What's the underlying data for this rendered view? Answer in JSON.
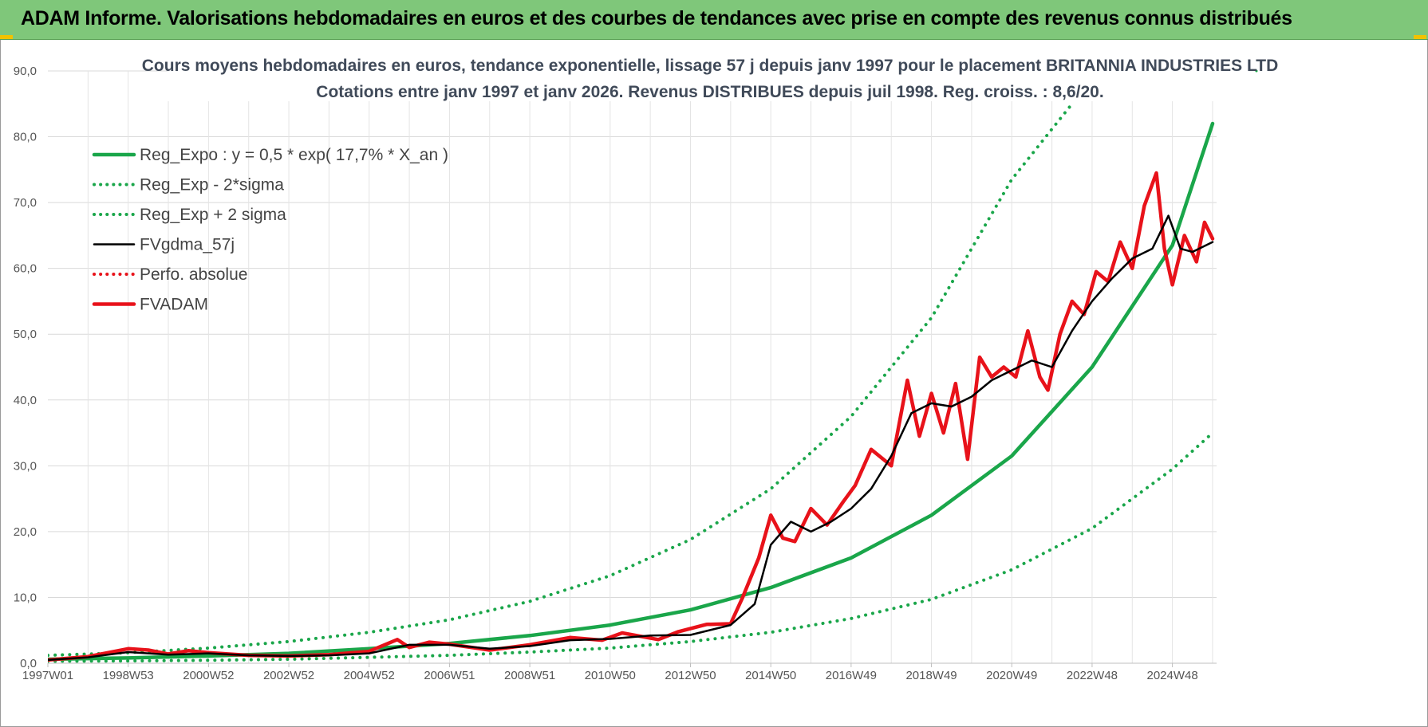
{
  "banner": {
    "title": "ADAM Informe. Valorisations hebdomadaires en euros et des courbes de tendances avec prise en compte des revenus connus distribués"
  },
  "colors": {
    "banner_bg": "#7fc77a",
    "trend": "#1aa64a",
    "price": "#e8121a",
    "smooth": "#000000",
    "grid": "#d9d9d9"
  },
  "chart_data": {
    "type": "line",
    "title": "Cours moyens hebdomadaires en euros, tendance exponentielle, lissage 57 j depuis janv 1997 pour le placement BRITANNIA INDUSTRIES LTD",
    "subtitle": "Cotations entre janv 1997 et janv 2026. Revenus DISTRIBUES depuis juil 1998. Reg. croiss. : 8,6/20.",
    "xlabel": "",
    "ylabel": "",
    "ylim": [
      0,
      90
    ],
    "xlim": [
      1997.0,
      2026.1
    ],
    "y_ticks": [
      "0,0",
      "10,0",
      "20,0",
      "30,0",
      "40,0",
      "50,0",
      "60,0",
      "70,0",
      "80,0",
      "90,0"
    ],
    "x_ticks": [
      {
        "label": "1997W01",
        "x": 1997.0
      },
      {
        "label": "1998W53",
        "x": 1999.0
      },
      {
        "label": "2000W52",
        "x": 2001.0
      },
      {
        "label": "2002W52",
        "x": 2003.0
      },
      {
        "label": "2004W52",
        "x": 2005.0
      },
      {
        "label": "2006W51",
        "x": 2007.0
      },
      {
        "label": "2008W51",
        "x": 2009.0
      },
      {
        "label": "2010W50",
        "x": 2011.0
      },
      {
        "label": "2012W50",
        "x": 2013.0
      },
      {
        "label": "2014W50",
        "x": 2015.0
      },
      {
        "label": "2016W49",
        "x": 2017.0
      },
      {
        "label": "2018W49",
        "x": 2019.0
      },
      {
        "label": "2020W49",
        "x": 2021.0
      },
      {
        "label": "2022W48",
        "x": 2023.0
      },
      {
        "label": "2024W48",
        "x": 2025.0
      }
    ],
    "grid": true,
    "legend_position": "top-left",
    "series": [
      {
        "name": "Reg_Expo : y = 0,5 * exp( 17,7% *  X_an )",
        "style": "solid-thick",
        "color": "#1aa64a",
        "x": [
          1997,
          1999,
          2001,
          2003,
          2005,
          2007,
          2009,
          2011,
          2013,
          2015,
          2017,
          2019,
          2021,
          2023,
          2025,
          2026
        ],
        "y": [
          0.6,
          0.8,
          1.1,
          1.5,
          2.2,
          3.0,
          4.2,
          5.8,
          8.1,
          11.5,
          16.0,
          22.5,
          31.5,
          45.0,
          63.5,
          82.0
        ]
      },
      {
        "name": "Reg_Exp - 2*sigma",
        "style": "dotted",
        "color": "#1aa64a",
        "x": [
          1997,
          1999,
          2001,
          2003,
          2005,
          2007,
          2009,
          2011,
          2013,
          2015,
          2017,
          2019,
          2021,
          2023,
          2025,
          2026
        ],
        "y": [
          0.3,
          0.35,
          0.45,
          0.6,
          0.9,
          1.2,
          1.7,
          2.3,
          3.3,
          4.7,
          6.8,
          9.7,
          14.2,
          20.5,
          29.5,
          35.0
        ]
      },
      {
        "name": "Reg_Exp + 2 sigma",
        "style": "dotted",
        "color": "#1aa64a",
        "x": [
          1997,
          1999,
          2001,
          2003,
          2005,
          2007,
          2009,
          2011,
          2013,
          2015,
          2017,
          2019,
          2021,
          2022.5
        ],
        "y": [
          1.2,
          1.6,
          2.3,
          3.3,
          4.7,
          6.6,
          9.4,
          13.3,
          18.8,
          26.5,
          37.5,
          52.5,
          73.5,
          85.0
        ]
      },
      {
        "name": "FVgdma_57j",
        "style": "solid",
        "color": "#000000",
        "x": [
          1997,
          1998,
          1999,
          2000,
          2001,
          2002,
          2003,
          2004,
          2005,
          2006,
          2007,
          2008,
          2009,
          2010,
          2011,
          2012,
          2013,
          2014,
          2014.6,
          2015,
          2015.5,
          2016,
          2016.5,
          2017,
          2017.5,
          2018,
          2018.5,
          2019,
          2019.5,
          2020,
          2020.5,
          2021,
          2021.5,
          2022,
          2022.5,
          2023,
          2023.5,
          2024,
          2024.5,
          2024.9,
          2025.2,
          2025.5,
          2026
        ],
        "y": [
          0.5,
          0.9,
          1.7,
          1.3,
          1.5,
          1.2,
          1.1,
          1.2,
          1.5,
          2.8,
          2.8,
          2.2,
          2.6,
          3.5,
          3.7,
          4.2,
          4.3,
          5.8,
          9.0,
          18.0,
          21.5,
          20.0,
          21.5,
          23.5,
          26.5,
          31.5,
          38.0,
          39.5,
          39.0,
          40.5,
          43.0,
          44.5,
          46.0,
          45.0,
          50.5,
          55.0,
          58.5,
          61.5,
          63.0,
          68.0,
          63.0,
          62.5,
          64.0
        ]
      },
      {
        "name": "Perfo. absolue",
        "style": "dotted",
        "color": "#e8121a",
        "x": [],
        "y": []
      },
      {
        "name": "FVADAM",
        "style": "solid-thick",
        "color": "#e8121a",
        "x": [
          1997,
          1998,
          1999,
          1999.5,
          2000,
          2000.5,
          2001,
          2002,
          2003,
          2004,
          2005,
          2005.7,
          2006,
          2006.5,
          2007,
          2008,
          2009,
          2010,
          2010.8,
          2011.3,
          2012.2,
          2012.7,
          2013.4,
          2014,
          2014.3,
          2014.7,
          2015,
          2015.3,
          2015.6,
          2016,
          2016.4,
          2016.8,
          2017.1,
          2017.5,
          2018,
          2018.4,
          2018.7,
          2019,
          2019.3,
          2019.6,
          2019.9,
          2020.2,
          2020.5,
          2020.8,
          2021.1,
          2021.4,
          2021.7,
          2021.9,
          2022.2,
          2022.5,
          2022.8,
          2023.1,
          2023.4,
          2023.7,
          2024.0,
          2024.3,
          2024.6,
          2024.8,
          2025.0,
          2025.3,
          2025.6,
          2025.8,
          2026.0
        ],
        "y": [
          0.5,
          1.0,
          2.2,
          2.0,
          1.4,
          1.9,
          1.6,
          1.2,
          1.1,
          1.3,
          1.8,
          3.6,
          2.4,
          3.2,
          2.9,
          2.0,
          2.8,
          3.9,
          3.5,
          4.6,
          3.6,
          4.8,
          5.9,
          6.0,
          10.0,
          16.0,
          22.5,
          19.0,
          18.5,
          23.5,
          21.0,
          24.5,
          27.0,
          32.5,
          30.0,
          43.0,
          34.5,
          41.0,
          35.0,
          42.5,
          31.0,
          46.5,
          43.5,
          45.0,
          43.5,
          50.5,
          43.5,
          41.5,
          50.0,
          55.0,
          53.0,
          59.5,
          58.0,
          64.0,
          60.0,
          69.5,
          74.5,
          63.0,
          57.5,
          65.0,
          61.0,
          67.0,
          64.5
        ]
      }
    ]
  }
}
